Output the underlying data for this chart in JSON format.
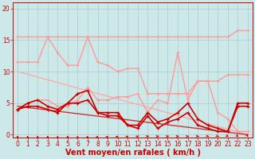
{
  "bg_color": "#cce8e8",
  "grid_color": "#aacccc",
  "xlabel": "Vent moyen/en rafales ( km/h )",
  "xlabel_color": "#cc0000",
  "xlabel_fontsize": 7,
  "xlim": [
    -0.5,
    23.5
  ],
  "ylim": [
    -0.5,
    21
  ],
  "yticks": [
    0,
    5,
    10,
    15,
    20
  ],
  "xticks": [
    0,
    1,
    2,
    3,
    4,
    5,
    6,
    7,
    8,
    9,
    10,
    11,
    12,
    13,
    14,
    15,
    16,
    17,
    18,
    19,
    20,
    21,
    22,
    23
  ],
  "series": [
    {
      "name": "flat_top_salmon",
      "color": "#ff9999",
      "lw": 1.0,
      "marker": "+",
      "ms": 3,
      "mew": 0.8,
      "x": [
        0,
        1,
        2,
        3,
        4,
        5,
        6,
        7,
        8,
        9,
        10,
        11,
        12,
        13,
        14,
        15,
        16,
        17,
        18,
        19,
        20,
        21,
        22,
        23
      ],
      "y": [
        15.5,
        15.5,
        15.5,
        15.5,
        15.5,
        15.5,
        15.5,
        15.5,
        15.5,
        15.5,
        15.5,
        15.5,
        15.5,
        15.5,
        15.5,
        15.5,
        15.5,
        15.5,
        15.5,
        15.5,
        15.5,
        15.5,
        16.5,
        16.5
      ]
    },
    {
      "name": "mid_salmon_vary",
      "color": "#ff9999",
      "lw": 1.0,
      "marker": "+",
      "ms": 3,
      "mew": 0.8,
      "x": [
        0,
        1,
        2,
        3,
        4,
        5,
        6,
        7,
        8,
        9,
        10,
        11,
        12,
        13,
        14,
        15,
        16,
        17,
        18,
        19,
        20,
        21,
        22,
        23
      ],
      "y": [
        11.5,
        11.5,
        11.5,
        15.5,
        13.0,
        11.0,
        11.0,
        15.5,
        11.5,
        11.0,
        10.0,
        10.5,
        10.5,
        6.5,
        6.5,
        6.5,
        6.5,
        6.5,
        8.5,
        8.5,
        8.5,
        9.5,
        9.5,
        9.5
      ]
    },
    {
      "name": "diagonal_salmon",
      "color": "#ffaaaa",
      "lw": 1.0,
      "marker": "None",
      "ms": 0,
      "mew": 0,
      "x": [
        0,
        23
      ],
      "y": [
        10.0,
        0.0
      ]
    },
    {
      "name": "salmon_peak16",
      "color": "#ff9999",
      "lw": 1.0,
      "marker": "+",
      "ms": 3,
      "mew": 0.8,
      "x": [
        0,
        1,
        2,
        3,
        4,
        5,
        6,
        7,
        8,
        9,
        10,
        11,
        12,
        13,
        14,
        15,
        16,
        17,
        18,
        19,
        20,
        21,
        22,
        23
      ],
      "y": [
        4.0,
        5.0,
        5.5,
        5.5,
        4.5,
        4.5,
        5.5,
        7.5,
        5.5,
        5.5,
        6.0,
        6.0,
        6.5,
        3.5,
        5.5,
        5.0,
        13.0,
        5.5,
        8.5,
        8.5,
        3.5,
        2.5,
        0.5,
        0.5
      ]
    },
    {
      "name": "diagonal_red",
      "color": "#cc3333",
      "lw": 1.0,
      "marker": "None",
      "ms": 0,
      "mew": 0,
      "x": [
        0,
        23
      ],
      "y": [
        4.5,
        0.0
      ]
    },
    {
      "name": "red_main1",
      "color": "#cc0000",
      "lw": 1.2,
      "marker": "+",
      "ms": 3,
      "mew": 0.9,
      "x": [
        0,
        1,
        2,
        3,
        4,
        5,
        6,
        7,
        8,
        9,
        10,
        11,
        12,
        13,
        14,
        15,
        16,
        17,
        18,
        19,
        20,
        21,
        22,
        23
      ],
      "y": [
        4.0,
        5.0,
        5.5,
        4.5,
        4.0,
        5.0,
        6.5,
        7.0,
        3.5,
        3.5,
        3.5,
        1.5,
        1.5,
        3.5,
        2.0,
        2.5,
        3.5,
        5.0,
        2.5,
        1.5,
        1.0,
        0.5,
        5.0,
        5.0
      ]
    },
    {
      "name": "red_main2",
      "color": "#cc0000",
      "lw": 1.2,
      "marker": "+",
      "ms": 3,
      "mew": 0.9,
      "x": [
        0,
        1,
        2,
        3,
        4,
        5,
        6,
        7,
        8,
        9,
        10,
        11,
        12,
        13,
        14,
        15,
        16,
        17,
        18,
        19,
        20,
        21,
        22,
        23
      ],
      "y": [
        4.0,
        4.5,
        4.5,
        4.0,
        3.5,
        5.0,
        5.0,
        5.5,
        3.5,
        3.0,
        3.0,
        1.5,
        1.0,
        3.0,
        1.0,
        2.0,
        2.5,
        3.5,
        1.5,
        1.0,
        0.5,
        0.5,
        4.5,
        4.5
      ]
    }
  ],
  "arrow_angles": [
    90,
    90,
    90,
    90,
    90,
    90,
    90,
    80,
    70,
    60,
    50,
    40,
    30,
    20,
    15,
    15,
    10,
    10,
    350,
    340,
    330,
    320,
    310,
    300
  ],
  "arrow_color": "#cc0000",
  "tick_color": "#cc0000",
  "tick_fontsize": 5.5
}
